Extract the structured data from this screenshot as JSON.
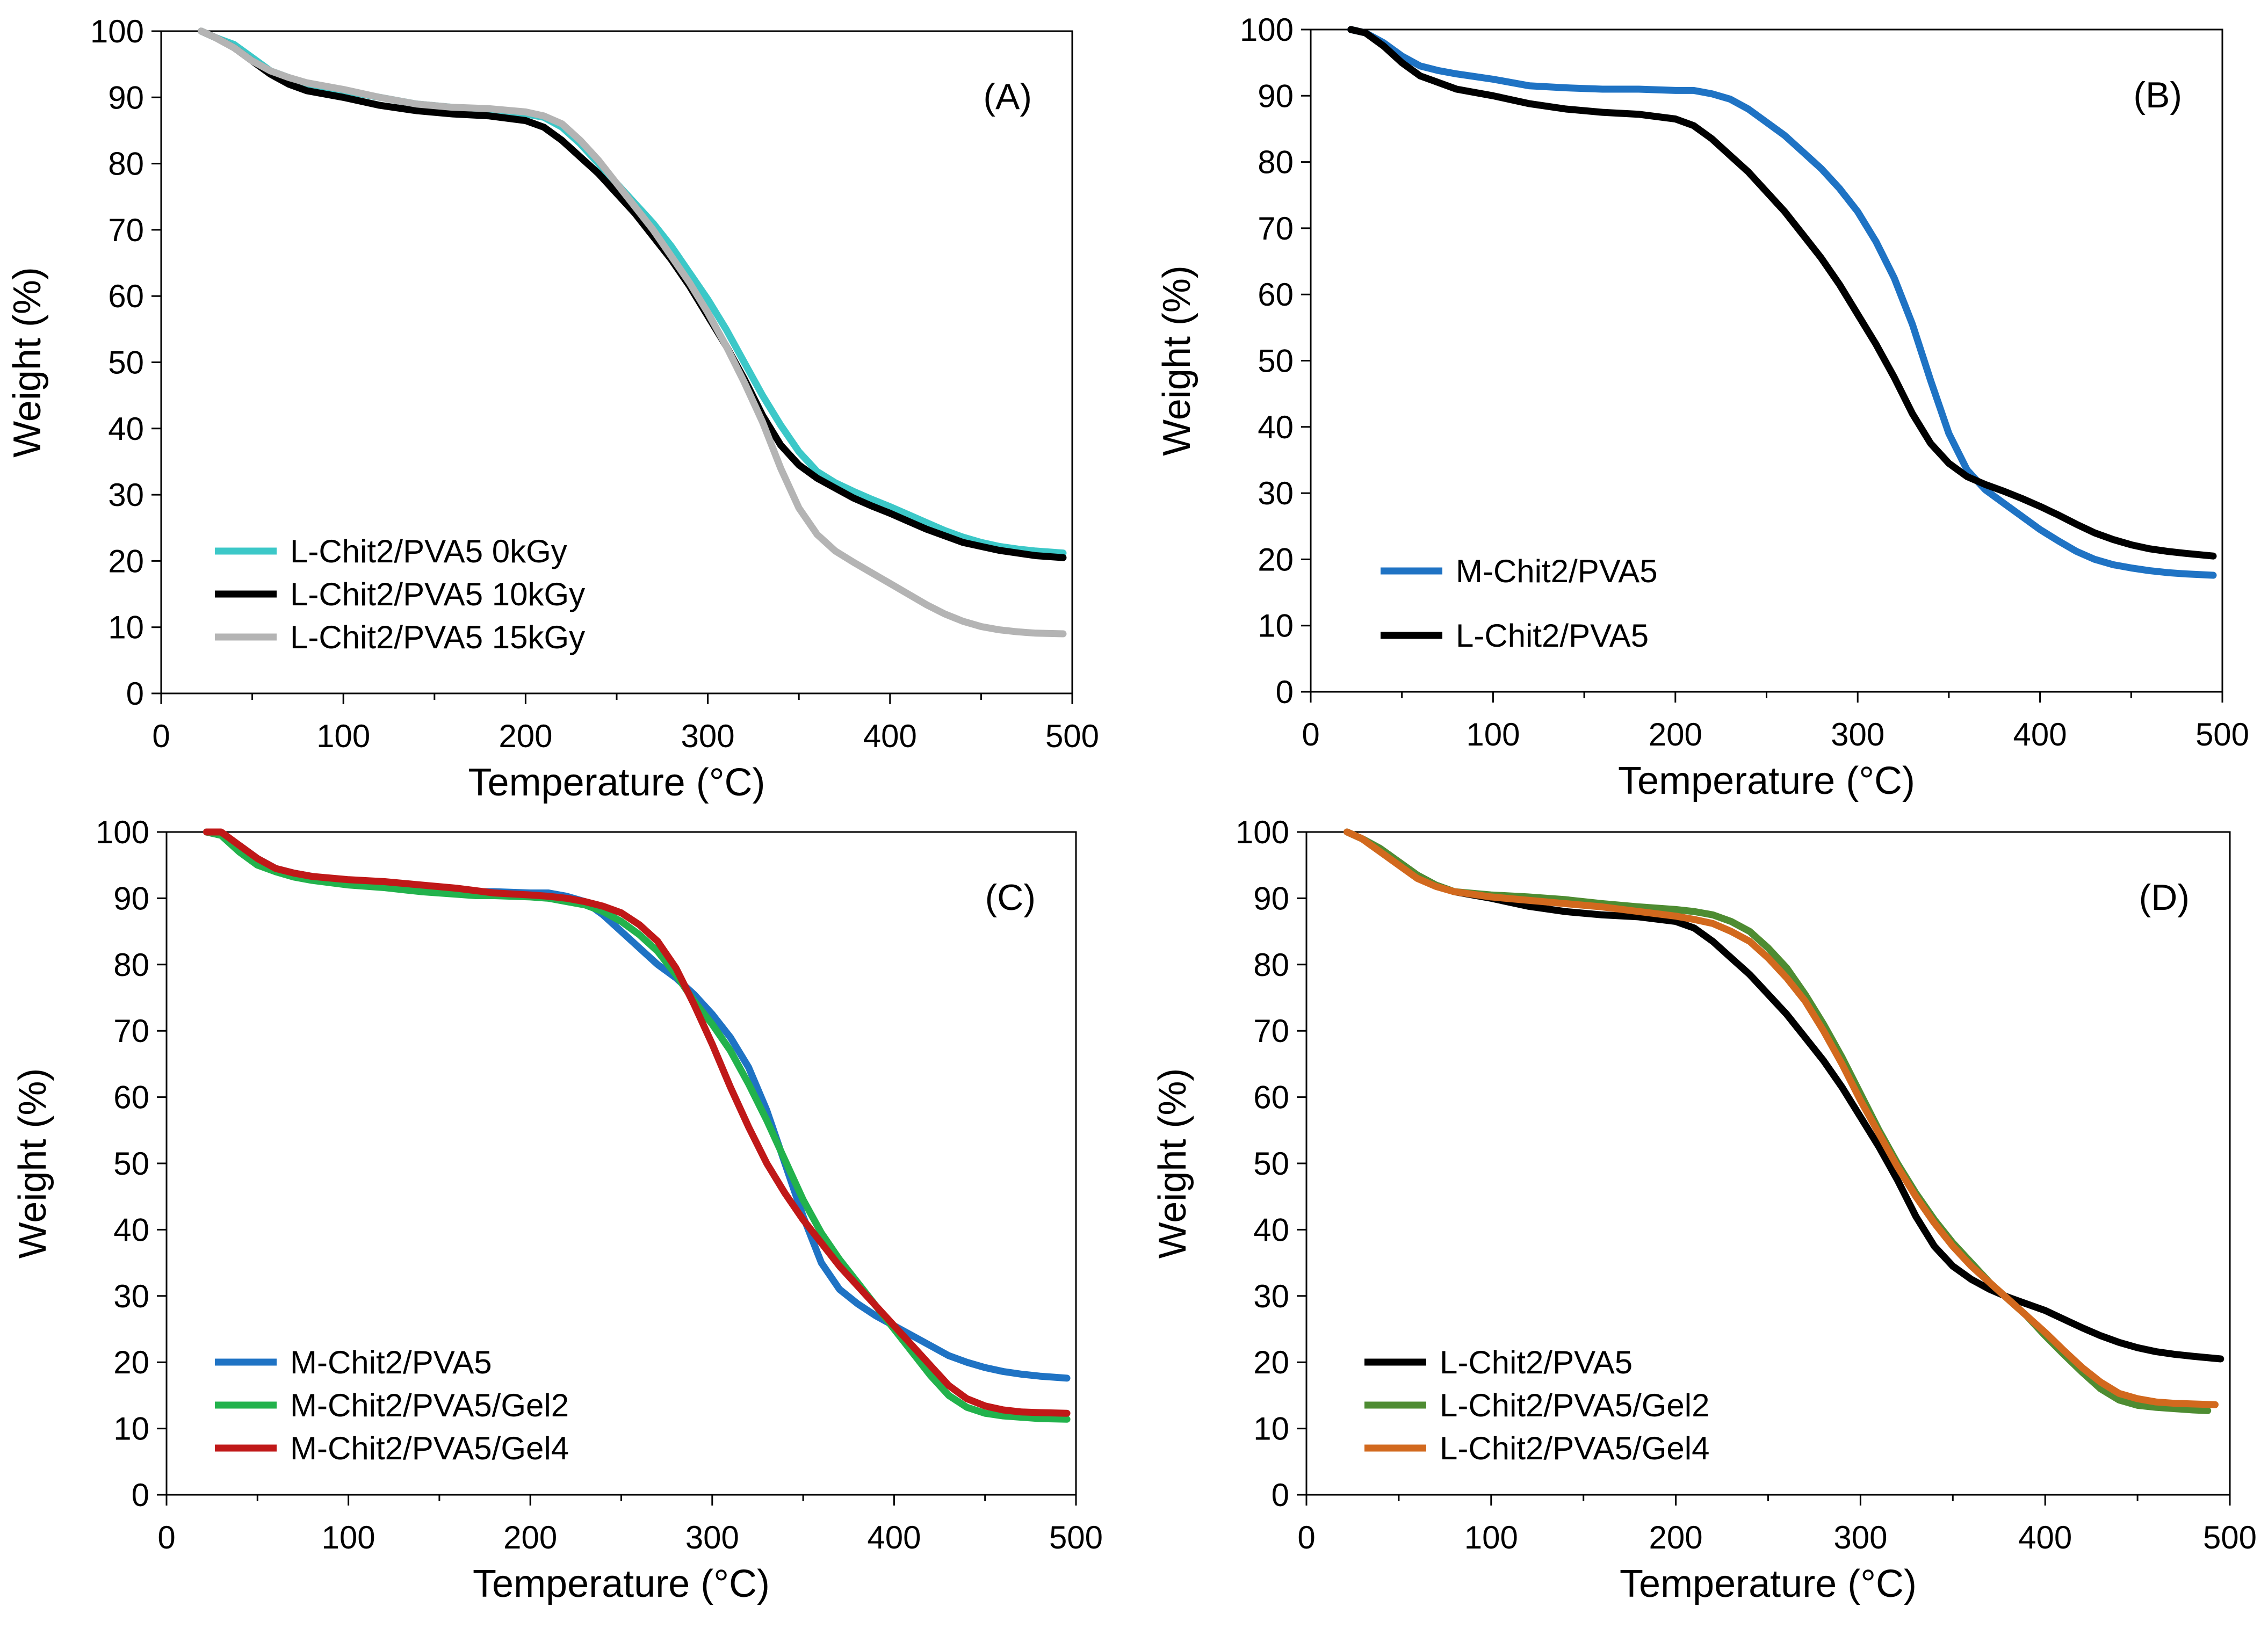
{
  "chart_data": [
    {
      "type": "line",
      "panel_label": "(A)",
      "xlabel": "Temperature (°C)",
      "ylabel": "Weight  (%)",
      "xlim": [
        0,
        500
      ],
      "ylim": [
        0,
        100
      ],
      "x_ticks": [
        0,
        100,
        200,
        300,
        400,
        500
      ],
      "y_ticks": [
        0,
        10,
        20,
        30,
        40,
        50,
        60,
        70,
        80,
        90,
        100
      ],
      "legend_position": "bottom-left",
      "series": [
        {
          "name": "L-Chit2/PVA5 0kGy",
          "color": "#3CC8C8",
          "x": [
            22,
            30,
            40,
            50,
            60,
            70,
            80,
            100,
            120,
            140,
            160,
            180,
            200,
            210,
            220,
            230,
            240,
            250,
            260,
            270,
            280,
            290,
            300,
            310,
            320,
            330,
            340,
            350,
            360,
            370,
            380,
            390,
            400,
            410,
            420,
            430,
            440,
            450,
            460,
            470,
            480,
            495
          ],
          "y": [
            100,
            99,
            98,
            96,
            94,
            93,
            92,
            91,
            90,
            89,
            88.5,
            88,
            87.5,
            87,
            85.5,
            83,
            80,
            77,
            74,
            71,
            67.5,
            63.5,
            59.5,
            55,
            50,
            45,
            40.5,
            36.5,
            33.5,
            31.8,
            30.5,
            29.3,
            28.2,
            27,
            25.8,
            24.6,
            23.6,
            22.8,
            22.2,
            21.8,
            21.5,
            21.2
          ]
        },
        {
          "name": "L-Chit2/PVA5 10kGy",
          "color": "#000000",
          "x": [
            22,
            30,
            40,
            50,
            60,
            70,
            80,
            100,
            120,
            140,
            160,
            180,
            200,
            210,
            220,
            230,
            240,
            250,
            260,
            270,
            280,
            290,
            300,
            310,
            320,
            330,
            340,
            350,
            360,
            370,
            380,
            390,
            400,
            410,
            420,
            430,
            440,
            450,
            460,
            470,
            480,
            495
          ],
          "y": [
            100,
            99,
            97.5,
            95.5,
            93.5,
            92,
            91,
            90,
            88.8,
            88,
            87.5,
            87.2,
            86.5,
            85.5,
            83.5,
            81,
            78.5,
            75.5,
            72.5,
            69,
            65.5,
            61.5,
            57,
            52.5,
            47.5,
            42,
            37.5,
            34.5,
            32.5,
            31,
            29.5,
            28.3,
            27.2,
            26,
            24.8,
            23.8,
            22.8,
            22.2,
            21.6,
            21.2,
            20.8,
            20.5
          ]
        },
        {
          "name": "L-Chit2/PVA5 15kGy",
          "color": "#B4B4B4",
          "x": [
            22,
            30,
            40,
            50,
            60,
            70,
            80,
            100,
            120,
            140,
            160,
            180,
            200,
            210,
            220,
            230,
            240,
            250,
            260,
            270,
            280,
            290,
            300,
            310,
            320,
            330,
            340,
            350,
            360,
            370,
            380,
            390,
            400,
            410,
            420,
            430,
            440,
            450,
            460,
            470,
            480,
            495
          ],
          "y": [
            100,
            99,
            97.5,
            95.5,
            94,
            93,
            92.2,
            91.2,
            90,
            89,
            88.5,
            88.3,
            87.8,
            87.2,
            86,
            83.5,
            80.5,
            77,
            73.5,
            70,
            66,
            62,
            57.5,
            52.5,
            47,
            41,
            34,
            28,
            24,
            21.5,
            19.8,
            18.2,
            16.6,
            15,
            13.4,
            12,
            10.9,
            10.1,
            9.6,
            9.3,
            9.1,
            9
          ]
        }
      ]
    },
    {
      "type": "line",
      "panel_label": "(B)",
      "xlabel": "Temperature (°C)",
      "ylabel": "Weight  (%)",
      "xlim": [
        0,
        500
      ],
      "ylim": [
        0,
        100
      ],
      "x_ticks": [
        0,
        100,
        200,
        300,
        400,
        500
      ],
      "y_ticks": [
        0,
        10,
        20,
        30,
        40,
        50,
        60,
        70,
        80,
        90,
        100
      ],
      "legend_position": "bottom-left",
      "series": [
        {
          "name": "M-Chit2/PVA5",
          "color": "#1F73C4",
          "x": [
            22,
            30,
            40,
            50,
            60,
            70,
            80,
            100,
            120,
            140,
            160,
            180,
            200,
            210,
            220,
            230,
            240,
            250,
            260,
            270,
            280,
            290,
            300,
            310,
            320,
            330,
            340,
            350,
            360,
            370,
            380,
            390,
            400,
            410,
            420,
            430,
            440,
            450,
            460,
            470,
            480,
            495
          ],
          "y": [
            100,
            99.5,
            98,
            96,
            94.5,
            93.8,
            93.3,
            92.5,
            91.5,
            91.2,
            91,
            91,
            90.8,
            90.8,
            90.3,
            89.5,
            88,
            86,
            84,
            81.5,
            79,
            76,
            72.5,
            68,
            62.5,
            55.5,
            47,
            39,
            33.5,
            30.5,
            28.5,
            26.5,
            24.5,
            22.8,
            21.2,
            20,
            19.2,
            18.7,
            18.3,
            18,
            17.8,
            17.6
          ]
        },
        {
          "name": "L-Chit2/PVA5",
          "color": "#000000",
          "x": [
            22,
            30,
            40,
            50,
            60,
            70,
            80,
            100,
            120,
            140,
            160,
            180,
            200,
            210,
            220,
            230,
            240,
            250,
            260,
            270,
            280,
            290,
            300,
            310,
            320,
            330,
            340,
            350,
            360,
            370,
            380,
            390,
            400,
            410,
            420,
            430,
            440,
            450,
            460,
            470,
            480,
            495
          ],
          "y": [
            100,
            99.5,
            97.5,
            95,
            93,
            92,
            91,
            90,
            88.8,
            88,
            87.5,
            87.2,
            86.5,
            85.5,
            83.5,
            81,
            78.5,
            75.5,
            72.5,
            69,
            65.5,
            61.5,
            57,
            52.5,
            47.5,
            42,
            37.5,
            34.5,
            32.5,
            31.3,
            30.3,
            29.2,
            28,
            26.7,
            25.3,
            24,
            23,
            22.2,
            21.6,
            21.2,
            20.9,
            20.5
          ]
        }
      ]
    },
    {
      "type": "line",
      "panel_label": "(C)",
      "xlabel": "Temperature (°C)",
      "ylabel": "Weight  (%)",
      "xlim": [
        0,
        500
      ],
      "ylim": [
        0,
        100
      ],
      "x_ticks": [
        0,
        100,
        200,
        300,
        400,
        500
      ],
      "y_ticks": [
        0,
        10,
        20,
        30,
        40,
        50,
        60,
        70,
        80,
        90,
        100
      ],
      "legend_position": "bottom-left",
      "series": [
        {
          "name": "M-Chit2/PVA5",
          "color": "#1F73C4",
          "x": [
            22,
            30,
            40,
            50,
            60,
            70,
            80,
            100,
            120,
            140,
            160,
            180,
            200,
            210,
            220,
            230,
            240,
            250,
            260,
            270,
            280,
            290,
            300,
            310,
            320,
            330,
            340,
            350,
            360,
            370,
            380,
            390,
            400,
            410,
            420,
            430,
            440,
            450,
            460,
            470,
            480,
            495
          ],
          "y": [
            100,
            99.5,
            98,
            96,
            94.5,
            93.8,
            93.3,
            92.5,
            91.8,
            91.3,
            91,
            91,
            90.8,
            90.8,
            90.3,
            89.5,
            87.5,
            85,
            82.5,
            80,
            78,
            75.5,
            72.5,
            69,
            64.5,
            58,
            50,
            42,
            35,
            31,
            28.8,
            27,
            25.5,
            24,
            22.5,
            21,
            20,
            19.2,
            18.6,
            18.2,
            17.9,
            17.6
          ]
        },
        {
          "name": "M-Chit2/PVA5/Gel2",
          "color": "#22B24C",
          "x": [
            22,
            30,
            40,
            50,
            60,
            70,
            80,
            100,
            120,
            140,
            160,
            170,
            180,
            200,
            210,
            220,
            230,
            240,
            250,
            260,
            270,
            280,
            290,
            300,
            310,
            320,
            330,
            340,
            350,
            360,
            370,
            380,
            390,
            400,
            410,
            420,
            430,
            440,
            450,
            460,
            470,
            480,
            495
          ],
          "y": [
            100,
            99.5,
            97,
            95,
            94,
            93.2,
            92.7,
            92,
            91.6,
            91,
            90.6,
            90.4,
            90.4,
            90.2,
            90,
            89.5,
            89,
            88,
            86.5,
            84.5,
            82,
            78.5,
            74.5,
            71,
            67,
            62,
            56.5,
            50.5,
            44.5,
            39.5,
            35.5,
            32,
            28.5,
            25,
            21.5,
            18,
            15,
            13.2,
            12.3,
            11.9,
            11.7,
            11.5,
            11.4
          ]
        },
        {
          "name": "M-Chit2/PVA5/Gel4",
          "color": "#C01818",
          "x": [
            22,
            30,
            40,
            50,
            60,
            70,
            80,
            100,
            120,
            140,
            160,
            180,
            200,
            210,
            220,
            230,
            240,
            250,
            260,
            270,
            280,
            290,
            300,
            310,
            320,
            330,
            340,
            350,
            360,
            370,
            380,
            390,
            400,
            410,
            420,
            430,
            440,
            450,
            460,
            470,
            480,
            495
          ],
          "y": [
            100,
            100,
            98,
            96,
            94.5,
            93.8,
            93.3,
            92.8,
            92.5,
            92,
            91.5,
            90.8,
            90.5,
            90.3,
            90,
            89.5,
            88.8,
            87.8,
            86,
            83.5,
            79.5,
            74,
            68,
            61.5,
            55.5,
            50,
            45.5,
            41.5,
            38,
            34.5,
            31.5,
            28.5,
            25.5,
            22.5,
            19.5,
            16.5,
            14.5,
            13.4,
            12.8,
            12.5,
            12.4,
            12.3
          ]
        }
      ]
    },
    {
      "type": "line",
      "panel_label": "(D)",
      "xlabel": "Temperature (°C)",
      "ylabel": "Weight  (%)",
      "xlim": [
        0,
        500
      ],
      "ylim": [
        0,
        100
      ],
      "x_ticks": [
        0,
        100,
        200,
        300,
        400,
        500
      ],
      "y_ticks": [
        0,
        10,
        20,
        30,
        40,
        50,
        60,
        70,
        80,
        90,
        100
      ],
      "legend_position": "bottom-left",
      "series": [
        {
          "name": "L-Chit2/PVA5",
          "color": "#000000",
          "x": [
            22,
            30,
            40,
            50,
            60,
            70,
            80,
            100,
            120,
            140,
            160,
            180,
            200,
            210,
            220,
            230,
            240,
            250,
            260,
            270,
            280,
            290,
            300,
            310,
            320,
            330,
            340,
            350,
            360,
            370,
            380,
            390,
            400,
            410,
            420,
            430,
            440,
            450,
            460,
            470,
            480,
            495
          ],
          "y": [
            100,
            99,
            97.5,
            95.5,
            93.5,
            92,
            91,
            90,
            88.8,
            88,
            87.5,
            87.2,
            86.5,
            85.5,
            83.5,
            81,
            78.5,
            75.5,
            72.5,
            69,
            65.5,
            61.5,
            57,
            52.5,
            47.5,
            42,
            37.5,
            34.5,
            32.5,
            31,
            29.8,
            28.8,
            27.8,
            26.5,
            25.2,
            24,
            23,
            22.2,
            21.6,
            21.2,
            20.9,
            20.5
          ]
        },
        {
          "name": "L-Chit2/PVA5/Gel2",
          "color": "#4E8C32",
          "x": [
            22,
            30,
            40,
            50,
            60,
            70,
            80,
            100,
            120,
            140,
            160,
            180,
            200,
            210,
            220,
            230,
            240,
            250,
            260,
            270,
            280,
            290,
            300,
            310,
            320,
            330,
            340,
            350,
            360,
            370,
            380,
            390,
            400,
            410,
            420,
            430,
            440,
            450,
            460,
            470,
            480,
            488
          ],
          "y": [
            100,
            99,
            97.5,
            95.5,
            93.5,
            92,
            91,
            90.5,
            90.2,
            89.8,
            89.2,
            88.7,
            88.3,
            88,
            87.5,
            86.5,
            85,
            82.5,
            79.5,
            75.5,
            71,
            66,
            60.5,
            55,
            50,
            45.5,
            41.5,
            38,
            35,
            32,
            29.5,
            27,
            24,
            21.2,
            18.5,
            16,
            14.3,
            13.5,
            13.2,
            13,
            12.8,
            12.7
          ]
        },
        {
          "name": "L-Chit2/PVA5/Gel4",
          "color": "#D2691E",
          "x": [
            22,
            30,
            40,
            50,
            60,
            70,
            80,
            100,
            120,
            140,
            160,
            180,
            200,
            210,
            220,
            230,
            240,
            250,
            260,
            270,
            280,
            290,
            300,
            310,
            320,
            330,
            340,
            350,
            360,
            370,
            380,
            390,
            400,
            410,
            420,
            430,
            440,
            450,
            460,
            470,
            480,
            492
          ],
          "y": [
            100,
            99,
            97,
            95,
            93,
            91.8,
            91,
            90.2,
            89.7,
            89.2,
            88.7,
            88,
            87.3,
            86.8,
            86.2,
            85,
            83.5,
            81,
            78,
            74.5,
            70,
            65,
            59.5,
            54.5,
            49.5,
            45,
            41,
            37.5,
            34.5,
            32,
            29.5,
            27,
            24.5,
            21.8,
            19.2,
            17,
            15.3,
            14.5,
            14,
            13.8,
            13.7,
            13.6
          ]
        }
      ]
    }
  ]
}
